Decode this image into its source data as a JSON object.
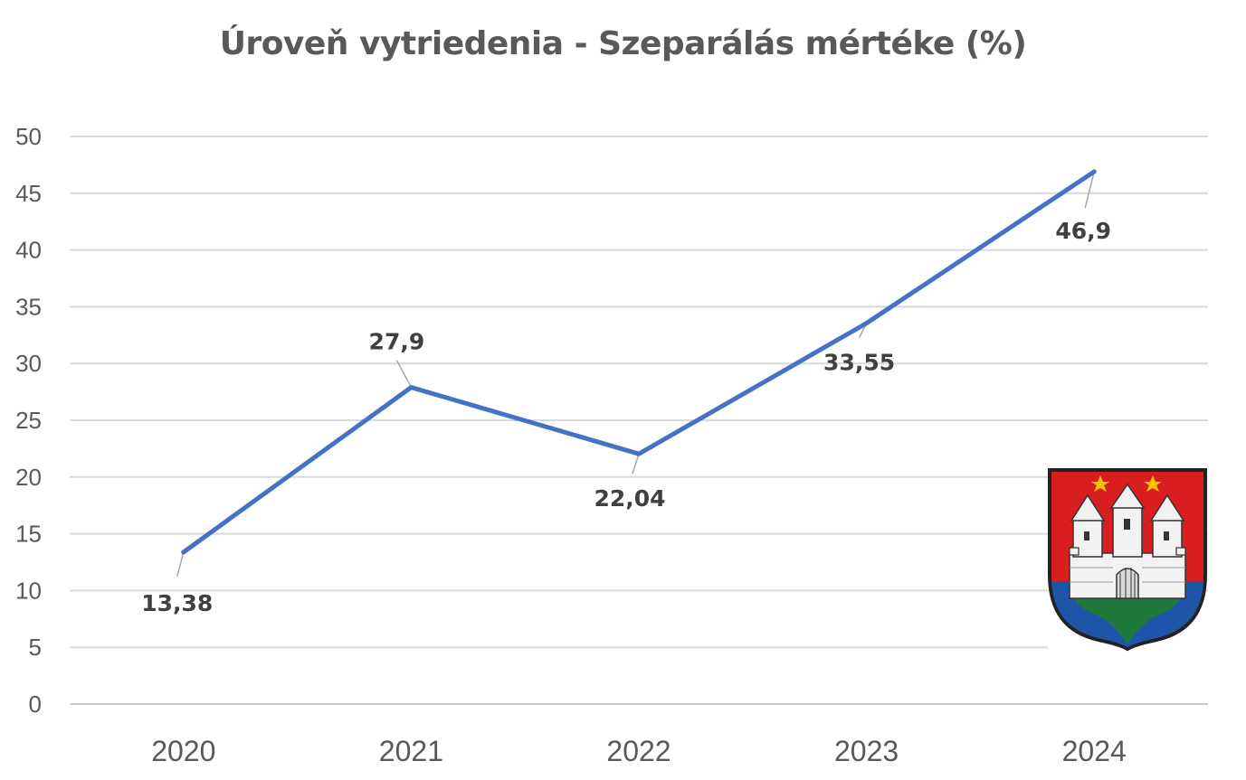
{
  "chart_data": {
    "type": "line",
    "title": "Úroveň vytriedenia - Szeparálás mértéke (%)",
    "xlabel": "",
    "ylabel": "",
    "categories": [
      "2020",
      "2021",
      "2022",
      "2023",
      "2024"
    ],
    "series": [
      {
        "values": [
          13.38,
          27.9,
          22.04,
          33.55,
          46.9
        ],
        "labels": [
          "13,38",
          "27,9",
          "22,04",
          "33,55",
          "46,9"
        ],
        "color": "#4472C4"
      }
    ],
    "ylim": [
      0,
      50
    ],
    "yticks": [
      0,
      5,
      10,
      15,
      20,
      25,
      30,
      35,
      40,
      45,
      50
    ],
    "grid": true,
    "legend": "none"
  },
  "decorations": {
    "emblem": "coat-of-arms-icon",
    "emblem_colors": {
      "red": "#D81E1E",
      "green": "#1E7A3A",
      "blue": "#1E55A8",
      "gold": "#F5C400",
      "outline": "#222222"
    }
  }
}
